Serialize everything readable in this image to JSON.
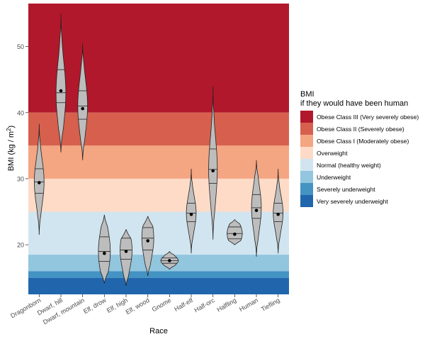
{
  "chart_data": {
    "type": "violin",
    "xlabel": "Race",
    "ylabel_main": "BMI (kg / m",
    "ylabel_sup": "2",
    "ylabel_end": ")",
    "ylim": [
      12.5,
      56.5
    ],
    "yticks": [
      20,
      30,
      40,
      50
    ],
    "grid": false,
    "legend_placement": "right",
    "legend_title": [
      "BMI",
      "if they would have been human"
    ],
    "bands": [
      {
        "label": "Obese Class III (Very severely obese)",
        "from": 40,
        "to": 56.5,
        "color": "#b2182b"
      },
      {
        "label": "Obese Class II (Severely obese)",
        "from": 35,
        "to": 40,
        "color": "#d6604d"
      },
      {
        "label": "Obese Class I (Moderately obese)",
        "from": 30,
        "to": 35,
        "color": "#f4a582"
      },
      {
        "label": "Overweight",
        "from": 25,
        "to": 30,
        "color": "#fddbc7"
      },
      {
        "label": "Normal (healthy weight)",
        "from": 18.5,
        "to": 25,
        "color": "#d1e5f0"
      },
      {
        "label": "Underweight",
        "from": 16,
        "to": 18.5,
        "color": "#92c5de"
      },
      {
        "label": "Severely underweight",
        "from": 15,
        "to": 16,
        "color": "#4393c3"
      },
      {
        "label": "Very severely underweight",
        "from": 12.5,
        "to": 15,
        "color": "#2166ac"
      }
    ],
    "categories": [
      "Dragonborn",
      "Dwarf, hill",
      "Dwarf, mountain",
      "Elf, drow",
      "Elf, high",
      "Elf, wood",
      "Gnome",
      "Half-elf",
      "Half-orc",
      "Halfling",
      "Human",
      "Tiefling"
    ],
    "series": [
      {
        "category": "Dragonborn",
        "min": 21.5,
        "max": 38.3,
        "q1": 27.8,
        "median": 29.5,
        "q3": 31.5,
        "mean": 29.4,
        "width": 0.45
      },
      {
        "category": "Dwarf, hill",
        "min": 34.0,
        "max": 55.0,
        "q1": 41.5,
        "median": 43.0,
        "q3": 46.5,
        "mean": 43.3,
        "width": 0.45
      },
      {
        "category": "Dwarf, mountain",
        "min": 32.8,
        "max": 50.5,
        "q1": 39.0,
        "median": 41.0,
        "q3": 43.3,
        "mean": 40.6,
        "width": 0.45
      },
      {
        "category": "Elf, drow",
        "min": 14.2,
        "max": 24.5,
        "q1": 17.5,
        "median": 19.0,
        "q3": 21.2,
        "mean": 18.7,
        "width": 0.55
      },
      {
        "category": "Elf, high",
        "min": 13.8,
        "max": 22.3,
        "q1": 17.8,
        "median": 19.2,
        "q3": 21.0,
        "mean": 19.0,
        "width": 0.55
      },
      {
        "category": "Elf, wood",
        "min": 15.3,
        "max": 24.3,
        "q1": 19.2,
        "median": 21.0,
        "q3": 22.6,
        "mean": 20.6,
        "width": 0.55
      },
      {
        "category": "Gnome",
        "min": 16.3,
        "max": 19.0,
        "q1": 17.2,
        "median": 17.6,
        "q3": 18.0,
        "mean": 17.6,
        "width": 0.8
      },
      {
        "category": "Half-elf",
        "min": 18.7,
        "max": 31.5,
        "q1": 23.5,
        "median": 24.8,
        "q3": 26.3,
        "mean": 24.6,
        "width": 0.45
      },
      {
        "category": "Half-orc",
        "min": 20.8,
        "max": 44.0,
        "q1": 29.3,
        "median": 31.4,
        "q3": 34.5,
        "mean": 31.2,
        "width": 0.4
      },
      {
        "category": "Halfling",
        "min": 20.0,
        "max": 23.8,
        "q1": 20.9,
        "median": 21.7,
        "q3": 22.7,
        "mean": 21.6,
        "width": 0.7
      },
      {
        "category": "Human",
        "min": 18.2,
        "max": 32.8,
        "q1": 24.0,
        "median": 25.6,
        "q3": 27.6,
        "mean": 25.2,
        "width": 0.45
      },
      {
        "category": "Tiefling",
        "min": 18.7,
        "max": 31.5,
        "q1": 23.5,
        "median": 24.8,
        "q3": 26.3,
        "mean": 24.6,
        "width": 0.45
      }
    ]
  }
}
